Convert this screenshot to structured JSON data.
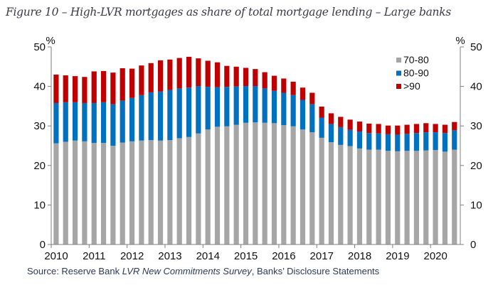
{
  "figure": {
    "title": "Figure 10 – High-LVR mortgages as share of total mortgage lending – Large banks",
    "source_prefix": "Source: Reserve Bank ",
    "source_italic": "LVR New Commitments Survey",
    "source_suffix": ", Banks’ Disclosure Statements"
  },
  "chart_data": {
    "type": "bar",
    "stacked": true,
    "title": "High-LVR mortgages as share of total mortgage lending – Large banks",
    "xlabel": "",
    "ylabel": "%",
    "ylabel_right": "%",
    "ylim": [
      0,
      50
    ],
    "yticks": [
      0,
      10,
      20,
      30,
      40,
      50
    ],
    "xtick_labels": [
      "2010",
      "2011",
      "2012",
      "2013",
      "2014",
      "2015",
      "2016",
      "2017",
      "2018",
      "2019",
      "2020"
    ],
    "legend_position": "top-right",
    "grid": false,
    "categories": [
      "2010Q1",
      "2010Q2",
      "2010Q3",
      "2010Q4",
      "2011Q1",
      "2011Q2",
      "2011Q3",
      "2011Q4",
      "2012Q1",
      "2012Q2",
      "2012Q3",
      "2012Q4",
      "2013Q1",
      "2013Q2",
      "2013Q3",
      "2013Q4",
      "2014Q1",
      "2014Q2",
      "2014Q3",
      "2014Q4",
      "2015Q1",
      "2015Q2",
      "2015Q3",
      "2015Q4",
      "2016Q1",
      "2016Q2",
      "2016Q3",
      "2016Q4",
      "2017Q1",
      "2017Q2",
      "2017Q3",
      "2017Q4",
      "2018Q1",
      "2018Q2",
      "2018Q3",
      "2018Q4",
      "2019Q1",
      "2019Q2",
      "2019Q3",
      "2019Q4",
      "2020Q1",
      "2020Q2",
      "2020Q3"
    ],
    "series": [
      {
        "name": "70-80",
        "color": "#a6a6a6",
        "values": [
          25.6,
          26.0,
          26.3,
          26.1,
          25.7,
          25.7,
          25.0,
          25.8,
          26.1,
          26.3,
          26.4,
          26.3,
          26.4,
          26.9,
          27.2,
          28.1,
          29.1,
          29.8,
          29.9,
          30.3,
          30.8,
          30.9,
          30.8,
          30.7,
          30.2,
          29.9,
          29.1,
          28.4,
          27.0,
          25.9,
          25.2,
          24.9,
          24.3,
          24.0,
          24.0,
          23.7,
          23.6,
          23.7,
          23.7,
          23.8,
          23.9,
          23.5,
          24.0
        ]
      },
      {
        "name": "80-90",
        "color": "#0070c0",
        "values": [
          10.2,
          10.0,
          9.7,
          9.7,
          10.1,
          10.3,
          10.5,
          10.6,
          11.0,
          11.5,
          12.1,
          12.4,
          12.7,
          12.6,
          12.5,
          12.0,
          10.8,
          10.0,
          10.0,
          9.7,
          9.3,
          9.2,
          8.7,
          8.2,
          8.2,
          7.9,
          7.5,
          7.1,
          5.1,
          4.6,
          4.5,
          4.1,
          4.3,
          4.2,
          4.1,
          4.2,
          4.2,
          4.3,
          4.5,
          4.6,
          4.5,
          4.7,
          4.9
        ]
      },
      {
        "name": ">90",
        "color": "#c00000",
        "values": [
          7.2,
          6.8,
          6.6,
          6.6,
          8.0,
          7.9,
          8.0,
          8.2,
          7.4,
          7.5,
          7.4,
          7.9,
          7.7,
          7.7,
          7.8,
          7.0,
          6.6,
          6.3,
          5.3,
          5.0,
          4.6,
          4.3,
          4.1,
          3.8,
          3.6,
          3.4,
          3.1,
          2.9,
          2.8,
          2.7,
          2.6,
          2.6,
          2.5,
          2.4,
          2.4,
          2.2,
          2.3,
          2.3,
          2.3,
          2.3,
          2.1,
          2.1,
          2.1
        ]
      }
    ]
  }
}
